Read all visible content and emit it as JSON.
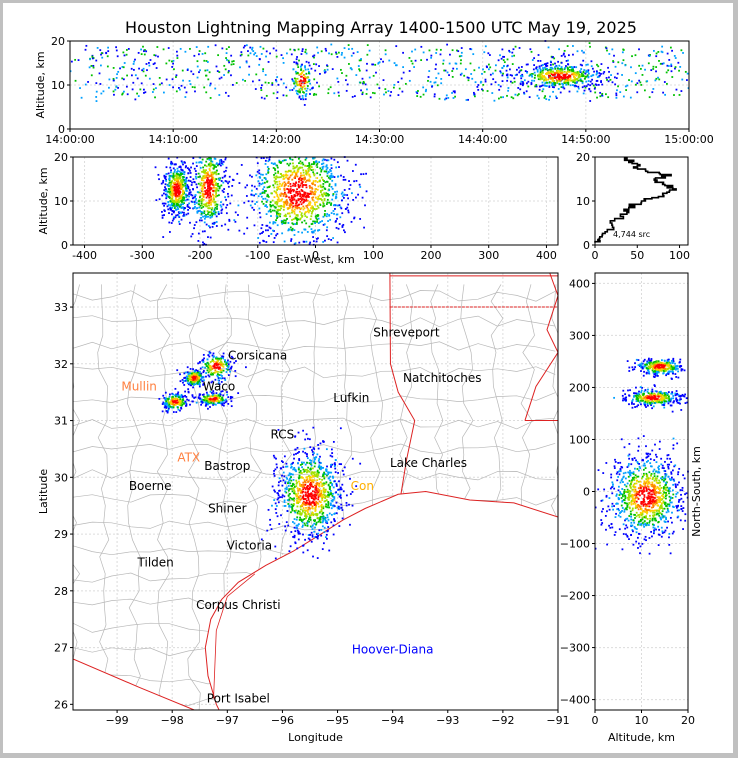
{
  "title": "Houston Lightning Mapping Array 1400-1500 UTC May 19, 2025",
  "chart_data": [
    {
      "panel": "time-altitude",
      "type": "scatter",
      "xlabel": "",
      "ylabel": "Altitude, km",
      "xticks": [
        "14:00:00",
        "14:10:00",
        "14:20:00",
        "14:30:00",
        "14:40:00",
        "14:50:00",
        "15:00:00"
      ],
      "xlim_minutes": [
        0,
        60
      ],
      "ylim": [
        0,
        20
      ],
      "yticks": [
        0,
        10,
        20
      ],
      "grid": true,
      "clusters": [
        {
          "x_minutes": [
            0,
            60
          ],
          "y": [
            6,
            19
          ],
          "density": "scattered"
        },
        {
          "x_minutes": [
            44,
            51
          ],
          "y": [
            8,
            16
          ],
          "density": "dense"
        },
        {
          "x_minutes": [
            21,
            24
          ],
          "y": [
            6,
            17
          ],
          "density": "moderate"
        }
      ]
    },
    {
      "panel": "east-west-altitude",
      "type": "scatter",
      "xlabel": "East-West, km",
      "ylabel": "Altitude, km",
      "xlim": [
        -420,
        420
      ],
      "xticks": [
        -400,
        -300,
        -200,
        -100,
        0,
        100,
        200,
        300,
        400
      ],
      "ylim": [
        0,
        20
      ],
      "yticks": [
        0,
        10,
        20
      ],
      "grid": true,
      "clusters": [
        {
          "x": -240,
          "y": 12.5,
          "spread_x": 12,
          "spread_y": 3
        },
        {
          "x": -185,
          "y": 13,
          "spread_x": 15,
          "spread_y": 5
        },
        {
          "x": -30,
          "y": 12,
          "spread_x": 45,
          "spread_y": 6
        }
      ]
    },
    {
      "panel": "altitude-histogram",
      "type": "line",
      "xlim": [
        0,
        110
      ],
      "xticks": [
        0,
        50,
        100
      ],
      "ylim": [
        0,
        20
      ],
      "yticks": [
        0,
        10,
        20
      ],
      "annotation": "4,744 src",
      "profile": [
        [
          0,
          0.5
        ],
        [
          5,
          1.5
        ],
        [
          12,
          3
        ],
        [
          20,
          5
        ],
        [
          30,
          7
        ],
        [
          40,
          8.5
        ],
        [
          55,
          10
        ],
        [
          75,
          11
        ],
        [
          85,
          12
        ],
        [
          92,
          13
        ],
        [
          80,
          14
        ],
        [
          70,
          15
        ],
        [
          90,
          16
        ],
        [
          60,
          17
        ],
        [
          50,
          18
        ],
        [
          40,
          19
        ],
        [
          35,
          20
        ]
      ]
    },
    {
      "panel": "plan-view",
      "type": "scatter",
      "xlabel": "Longitude",
      "ylabel": "Latitude",
      "xlim": [
        -99.8,
        -91
      ],
      "xticks": [
        -99,
        -98,
        -97,
        -96,
        -95,
        -94,
        -93,
        -92,
        -91
      ],
      "ylim": [
        25.9,
        33.6
      ],
      "yticks": [
        26,
        27,
        28,
        29,
        30,
        31,
        32,
        33
      ],
      "grid": true,
      "clusters": [
        {
          "lon": -97.2,
          "lat": 31.95,
          "spread_lon": 0.15,
          "spread_lat": 0.12
        },
        {
          "lon": -97.6,
          "lat": 31.75,
          "spread_lon": 0.1,
          "spread_lat": 0.08
        },
        {
          "lon": -97.95,
          "lat": 31.33,
          "spread_lon": 0.12,
          "spread_lat": 0.08
        },
        {
          "lon": -97.25,
          "lat": 31.38,
          "spread_lon": 0.14,
          "spread_lat": 0.06
        },
        {
          "lon": -95.5,
          "lat": 29.7,
          "spread_lon": 0.3,
          "spread_lat": 0.4
        }
      ],
      "cities": [
        {
          "name": "Shreveport",
          "lon": -93.75,
          "lat": 32.55,
          "color": "#000000"
        },
        {
          "name": "Corsicana",
          "lon": -96.45,
          "lat": 32.15,
          "color": "#000000"
        },
        {
          "name": "Natchitoches",
          "lon": -93.1,
          "lat": 31.75,
          "color": "#000000"
        },
        {
          "name": "Mullin",
          "lon": -98.6,
          "lat": 31.6,
          "color": "#ff8040"
        },
        {
          "name": "Waco",
          "lon": -97.15,
          "lat": 31.6,
          "color": "#000000"
        },
        {
          "name": "Lufkin",
          "lon": -94.75,
          "lat": 31.4,
          "color": "#000000"
        },
        {
          "name": "RCS",
          "lon": -96.0,
          "lat": 30.75,
          "color": "#000000"
        },
        {
          "name": "ATX",
          "lon": -97.7,
          "lat": 30.35,
          "color": "#ff8040"
        },
        {
          "name": "Bastrop",
          "lon": -97.0,
          "lat": 30.2,
          "color": "#000000"
        },
        {
          "name": "Lake Charles",
          "lon": -93.35,
          "lat": 30.25,
          "color": "#000000"
        },
        {
          "name": "Boerne",
          "lon": -98.4,
          "lat": 29.85,
          "color": "#000000"
        },
        {
          "name": "Con",
          "lon": -94.55,
          "lat": 29.85,
          "color": "#ffb000"
        },
        {
          "name": "Shiner",
          "lon": -97.0,
          "lat": 29.45,
          "color": "#000000"
        },
        {
          "name": "Victoria",
          "lon": -96.6,
          "lat": 28.8,
          "color": "#000000"
        },
        {
          "name": "Tilden",
          "lon": -98.3,
          "lat": 28.5,
          "color": "#000000"
        },
        {
          "name": "Corpus Christi",
          "lon": -96.8,
          "lat": 27.75,
          "color": "#000000"
        },
        {
          "name": "Hoover-Diana",
          "lon": -94.0,
          "lat": 26.97,
          "color": "#0000ff"
        },
        {
          "name": "Port Isabel",
          "lon": -96.8,
          "lat": 26.1,
          "color": "#000000"
        }
      ]
    },
    {
      "panel": "altitude-north-south",
      "type": "scatter",
      "xlabel": "Altitude, km",
      "ylabel": "North-South, km",
      "xlim": [
        0,
        20
      ],
      "xticks": [
        0,
        10,
        20
      ],
      "ylim": [
        -420,
        420
      ],
      "yticks": [
        -400,
        -300,
        -200,
        -100,
        0,
        100,
        200,
        300,
        400
      ],
      "grid": true,
      "clusters": [
        {
          "alt": 14,
          "ns": 240,
          "spread_alt": 2.5,
          "spread_ns": 8
        },
        {
          "alt": 12.5,
          "ns": 180,
          "spread_alt": 3,
          "spread_ns": 8
        },
        {
          "alt": 11,
          "ns": -10,
          "spread_alt": 4,
          "spread_ns": 40
        }
      ]
    }
  ],
  "colors": {
    "scale": [
      "#0000ff",
      "#00a0ff",
      "#00c000",
      "#a0e000",
      "#ffd000",
      "#ff8000",
      "#ff0000"
    ],
    "state_border": "#dd2222",
    "county_border": "#b8b8b8",
    "coastline": "#dd2222"
  }
}
